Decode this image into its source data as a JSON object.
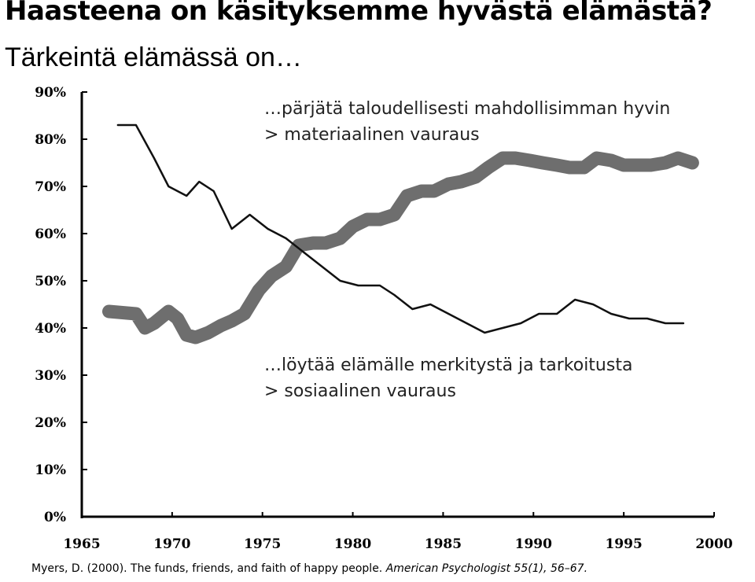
{
  "slide": {
    "title": "Haasteena on käsityksemme hyvästä elämästä?",
    "subtitle": "Tärkeintä elämässä on…",
    "annotation_top": {
      "line1": "…pärjätä taloudellisesti mahdollisimman hyvin",
      "line2": "> materiaalinen vauraus"
    },
    "annotation_bottom": {
      "line1": "…löytää elämälle merkitystä ja tarkoitusta",
      "line2": "> sosiaalinen vauraus"
    },
    "citation": {
      "plain": "Myers, D. (2000). The funds, friends, and faith of happy people. ",
      "italic": "American Psychologist 55(1), 56–67."
    }
  },
  "chart_data": {
    "type": "line",
    "xlim": [
      1965,
      2000
    ],
    "ylim": [
      0,
      90
    ],
    "x_ticks": [
      "1965",
      "1970",
      "1975",
      "1980",
      "1985",
      "1990",
      "1995",
      "2000"
    ],
    "y_ticks": [
      "0%",
      "10%",
      "20%",
      "30%",
      "40%",
      "50%",
      "60%",
      "70%",
      "80%",
      "90%"
    ],
    "grid": false,
    "series": [
      {
        "color": "#6e6e6e",
        "style": "thick",
        "x": [
          1966.5,
          1968,
          1968.5,
          1969,
          1969.8,
          1970.3,
          1970.8,
          1971.3,
          1972,
          1972.7,
          1973.3,
          1974,
          1974.8,
          1975.5,
          1976.3,
          1977,
          1977.8,
          1978.5,
          1979.3,
          1980,
          1980.8,
          1981.5,
          1982.3,
          1983,
          1983.8,
          1984.5,
          1985.3,
          1986,
          1986.8,
          1987.5,
          1988.3,
          1989,
          1989.8,
          1990.5,
          1991.3,
          1992,
          1992.8,
          1993.5,
          1994.3,
          1995,
          1995.8,
          1996.5,
          1997.3,
          1998,
          1998.8
        ],
        "y": [
          43.5,
          43,
          40,
          41,
          43.5,
          42,
          38.5,
          38,
          39,
          40.5,
          41.5,
          43,
          48,
          51,
          53,
          57.5,
          58,
          58,
          59,
          61.5,
          63,
          63,
          64,
          68,
          69,
          69,
          70.5,
          71,
          72,
          74,
          76,
          76,
          75.5,
          75,
          74.5,
          74,
          74,
          76,
          75.5,
          74.5,
          74.5,
          74.5,
          75,
          76,
          75
        ]
      },
      {
        "color": "#111111",
        "style": "thin",
        "x": [
          1967,
          1968,
          1969,
          1969.8,
          1970.8,
          1971.5,
          1972.3,
          1973.3,
          1974.3,
          1975.3,
          1976.3,
          1977.3,
          1978.3,
          1979.3,
          1980.3,
          1981.5,
          1982.3,
          1983.3,
          1984.3,
          1985.3,
          1986.3,
          1987.3,
          1988.3,
          1989.3,
          1990.3,
          1991.3,
          1992.3,
          1993.3,
          1994.3,
          1995.3,
          1996.3,
          1997.3,
          1998.3
        ],
        "y": [
          83,
          83,
          76,
          70,
          68,
          71,
          69,
          61,
          64,
          61,
          59,
          56,
          53,
          50,
          49,
          49,
          47,
          44,
          45,
          43,
          41,
          39,
          40,
          41,
          43,
          43,
          46,
          45,
          43,
          42,
          42,
          41,
          41
        ]
      }
    ]
  }
}
